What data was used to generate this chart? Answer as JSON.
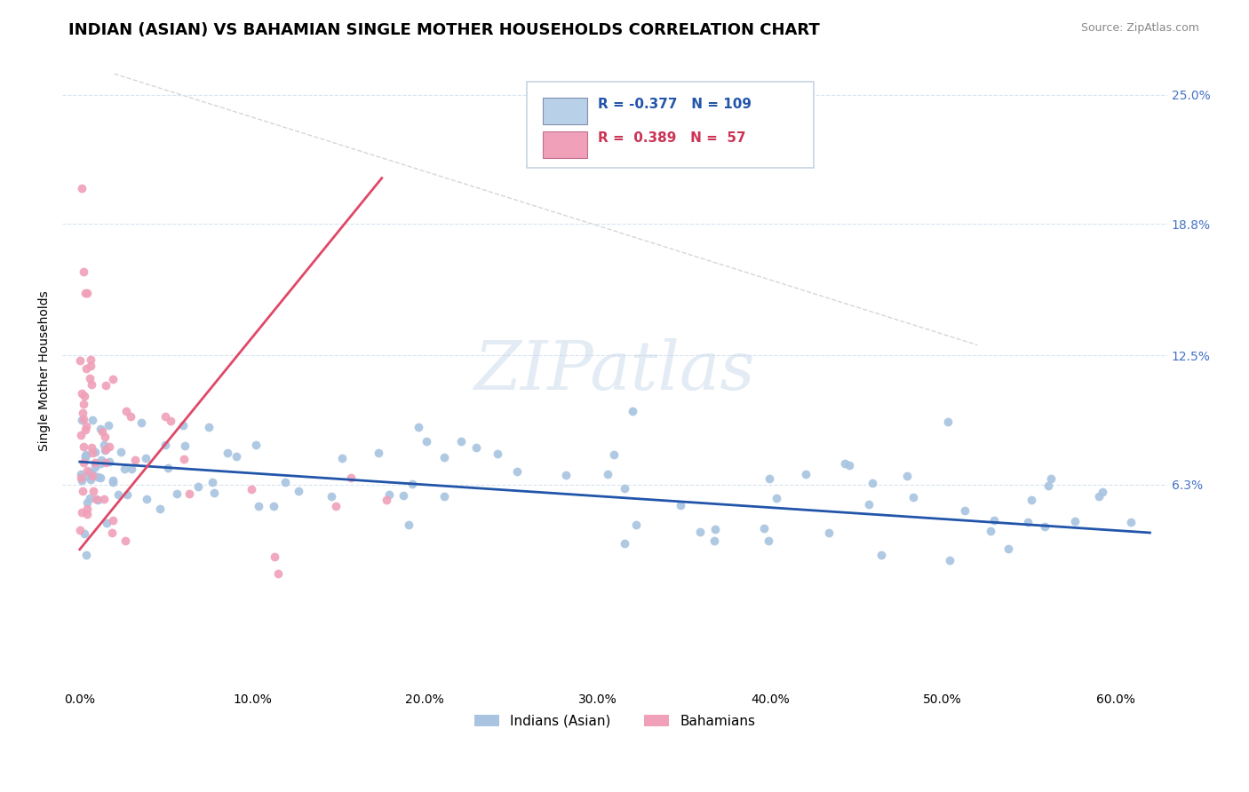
{
  "title": "INDIAN (ASIAN) VS BAHAMIAN SINGLE MOTHER HOUSEHOLDS CORRELATION CHART",
  "source_text": "Source: ZipAtlas.com",
  "ylabel": "Single Mother Households",
  "xlabel_ticks": [
    "0.0%",
    "10.0%",
    "20.0%",
    "30.0%",
    "40.0%",
    "50.0%",
    "60.0%"
  ],
  "xlabel_vals": [
    0.0,
    0.1,
    0.2,
    0.3,
    0.4,
    0.5,
    0.6
  ],
  "ytick_labels": [
    "6.3%",
    "12.5%",
    "18.8%",
    "25.0%"
  ],
  "ytick_vals": [
    0.063,
    0.125,
    0.188,
    0.25
  ],
  "ylim": [
    -0.035,
    0.27
  ],
  "xlim": [
    -0.01,
    0.63
  ],
  "blue_color": "#a8c4e0",
  "pink_color": "#f0a0b8",
  "blue_line_color": "#2255aa",
  "pink_line_color": "#e04868",
  "legend_blue_fill": "#b8d0e8",
  "legend_pink_fill": "#f0a0b8",
  "legend_r_blue": "-0.377",
  "legend_n_blue": "109",
  "legend_r_pink": "0.389",
  "legend_n_pink": "57",
  "legend_label_blue": "Indians (Asian)",
  "legend_label_pink": "Bahamians",
  "watermark_text": "ZIPatlas",
  "grid_color": "#d8e4f0",
  "dashed_line_color": "#c8c8c8",
  "title_fontsize": 13,
  "axis_label_fontsize": 10,
  "tick_fontsize": 10,
  "right_tick_color": "#4472c4"
}
